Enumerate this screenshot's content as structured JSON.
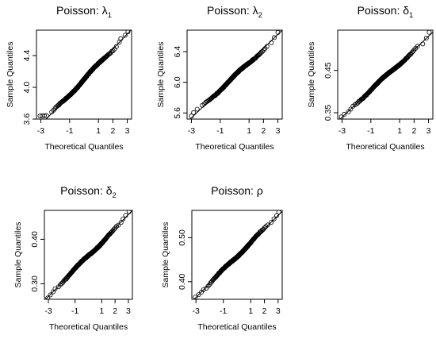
{
  "figure": {
    "xlabel": "Theoretical Quantiles",
    "ylabel": "Sample Quantiles"
  },
  "chart_data": [
    {
      "type": "scatter",
      "title_text": "Poisson: ",
      "title_symbol": "λ",
      "title_sub": "1",
      "xlabel": "Theoretical Quantiles",
      "ylabel": "Sample Quantiles",
      "xticks": [
        "-3",
        "-1",
        "1",
        "2",
        "3"
      ],
      "xtick_values": [
        -3,
        -1,
        1,
        2,
        3
      ],
      "yticks": [
        "3.6",
        "4.0",
        "4.4"
      ],
      "ytick_values": [
        3.6,
        4.0,
        4.4
      ],
      "xlim": [
        -3.3,
        3.3
      ],
      "ylim": [
        3.6,
        4.72
      ],
      "points": {
        "center": 4.1,
        "slope": 0.19,
        "min": 3.64,
        "max": 4.7,
        "tail_low": [
          -3.05,
          -2.9,
          -2.75,
          -2.6
        ],
        "tail_high": [
          2.45,
          2.55,
          2.85,
          3.05
        ]
      },
      "reference_line": {
        "x": [
          -3.3,
          3.3
        ],
        "y": [
          3.47,
          4.73
        ]
      }
    },
    {
      "type": "scatter",
      "title_text": "Poisson: ",
      "title_symbol": "λ",
      "title_sub": "2",
      "xlabel": "Theoretical Quantiles",
      "ylabel": "Sample Quantiles",
      "xticks": [
        "-3",
        "-1",
        "1",
        "2",
        "3"
      ],
      "xtick_values": [
        -3,
        -1,
        1,
        2,
        3
      ],
      "yticks": [
        "5.6",
        "6.0",
        "6.4"
      ],
      "ytick_values": [
        5.6,
        6.0,
        6.4
      ],
      "xlim": [
        -3.3,
        3.3
      ],
      "ylim": [
        5.52,
        6.68
      ],
      "points": {
        "center": 6.08,
        "slope": 0.175,
        "min": 5.56,
        "max": 6.65,
        "tail_low": [
          -3.0,
          -2.85,
          -2.6
        ],
        "tail_high": [
          2.55,
          2.75,
          3.0
        ]
      },
      "reference_line": {
        "x": [
          -3.3,
          3.3
        ],
        "y": [
          5.48,
          6.68
        ]
      }
    },
    {
      "type": "scatter",
      "title_text": "Poisson: ",
      "title_symbol": "δ",
      "title_sub": "1",
      "xlabel": "Theoretical Quantiles",
      "ylabel": "Sample Quantiles",
      "xticks": [
        "-3",
        "-1",
        "1",
        "2",
        "3"
      ],
      "xtick_values": [
        -3,
        -1,
        1,
        2,
        3
      ],
      "yticks": [
        "0.35",
        "0.45"
      ],
      "ytick_values": [
        0.35,
        0.45
      ],
      "xlim": [
        -3.3,
        3.3
      ],
      "ylim": [
        0.335,
        0.545
      ],
      "points": {
        "center": 0.435,
        "slope": 0.031,
        "min": 0.34,
        "max": 0.54,
        "tail_low": [
          -3.05,
          -2.85,
          -2.55,
          -2.4
        ],
        "tail_high": [
          2.6,
          2.85,
          3.05
        ]
      },
      "reference_line": {
        "x": [
          -3.3,
          3.3
        ],
        "y": [
          0.33,
          0.54
        ]
      }
    },
    {
      "type": "scatter",
      "title_text": "Poisson: ",
      "title_symbol": "δ",
      "title_sub": "2",
      "xlabel": "Theoretical Quantiles",
      "ylabel": "Sample Quantiles",
      "xticks": [
        "-3",
        "-1",
        "1",
        "2",
        "3"
      ],
      "xtick_values": [
        -3,
        -1,
        1,
        2,
        3
      ],
      "yticks": [
        "0.30",
        "0.40"
      ],
      "ytick_values": [
        0.3,
        0.4
      ],
      "xlim": [
        -3.3,
        3.3
      ],
      "ylim": [
        0.265,
        0.465
      ],
      "points": {
        "center": 0.363,
        "slope": 0.03,
        "min": 0.268,
        "max": 0.462,
        "tail_low": [
          -3.05,
          -2.85,
          -2.65,
          -2.5
        ],
        "tail_high": [
          2.45,
          2.6,
          2.8,
          3.05
        ]
      },
      "reference_line": {
        "x": [
          -3.3,
          3.3
        ],
        "y": [
          0.262,
          0.465
        ]
      }
    },
    {
      "type": "scatter",
      "title_text": "Poisson: ",
      "title_symbol": "ρ",
      "title_sub": "",
      "xlabel": "Theoretical Quantiles",
      "ylabel": "Sample Quantiles",
      "xticks": [
        "-3",
        "-1",
        "1",
        "2",
        "3"
      ],
      "xtick_values": [
        -3,
        -1,
        1,
        2,
        3
      ],
      "yticks": [
        "0.40",
        "0.50"
      ],
      "ytick_values": [
        0.4,
        0.5
      ],
      "xlim": [
        -3.3,
        3.3
      ],
      "ylim": [
        0.36,
        0.562
      ],
      "points": {
        "center": 0.458,
        "slope": 0.031,
        "min": 0.365,
        "max": 0.558,
        "tail_low": [
          -3.05,
          -2.8,
          -2.6,
          -2.45
        ],
        "tail_high": [
          2.5,
          2.7,
          2.9,
          3.05
        ]
      },
      "reference_line": {
        "x": [
          -3.3,
          3.3
        ],
        "y": [
          0.355,
          0.56
        ]
      }
    }
  ]
}
